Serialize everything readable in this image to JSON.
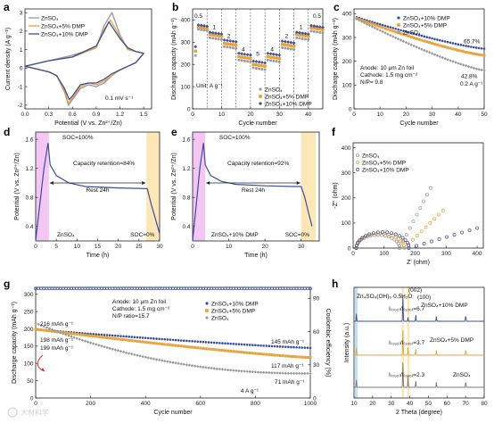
{
  "chart_data": [
    {
      "id": "a",
      "type": "line",
      "xlabel": "Potential (V vs. Zn²⁺/Zn)",
      "ylabel": "Current density (A g⁻¹)",
      "xlim": [
        0,
        1.6
      ],
      "ylim": [
        -2.2,
        3.2
      ],
      "xticks": [
        "0.0",
        "0.3",
        "0.6",
        "0.9",
        "1.2",
        "1.5"
      ],
      "yticks": [
        "-2",
        "-1",
        "0",
        "1",
        "2",
        "3"
      ],
      "annotation": "0.1 mV s⁻¹",
      "series": [
        {
          "name": "ZnSO₄",
          "color": "#9a9a9a",
          "upper": [
            [
              0.0,
              0.1
            ],
            [
              0.3,
              0.4
            ],
            [
              0.6,
              0.7
            ],
            [
              0.9,
              1.1
            ],
            [
              1.0,
              2.3
            ],
            [
              1.1,
              3.0
            ],
            [
              1.2,
              1.8
            ],
            [
              1.3,
              1.0
            ],
            [
              1.4,
              0.9
            ],
            [
              1.5,
              0.8
            ]
          ],
          "lower": [
            [
              1.5,
              0.8
            ],
            [
              1.4,
              0.3
            ],
            [
              1.3,
              0.1
            ],
            [
              1.2,
              -0.1
            ],
            [
              1.1,
              -0.4
            ],
            [
              1.0,
              -0.8
            ],
            [
              0.9,
              -1.0
            ],
            [
              0.8,
              -0.9
            ],
            [
              0.7,
              -1.1
            ],
            [
              0.6,
              -1.7
            ],
            [
              0.55,
              -2.0
            ],
            [
              0.5,
              -1.3
            ],
            [
              0.4,
              -0.4
            ],
            [
              0.3,
              -0.2
            ],
            [
              0.0,
              0.1
            ]
          ]
        },
        {
          "name": "ZnSO₄+5% DMP",
          "color": "#e8a23a",
          "upper": [
            [
              0.0,
              0.1
            ],
            [
              0.3,
              0.4
            ],
            [
              0.6,
              0.6
            ],
            [
              0.9,
              1.1
            ],
            [
              1.0,
              2.1
            ],
            [
              1.08,
              2.6
            ],
            [
              1.2,
              1.7
            ],
            [
              1.3,
              1.0
            ],
            [
              1.4,
              0.9
            ],
            [
              1.5,
              0.8
            ]
          ],
          "lower": [
            [
              1.5,
              0.8
            ],
            [
              1.4,
              0.3
            ],
            [
              1.3,
              0.1
            ],
            [
              1.2,
              -0.1
            ],
            [
              1.1,
              -0.4
            ],
            [
              1.0,
              -0.7
            ],
            [
              0.9,
              -0.9
            ],
            [
              0.8,
              -0.8
            ],
            [
              0.7,
              -1.0
            ],
            [
              0.6,
              -1.6
            ],
            [
              0.55,
              -1.9
            ],
            [
              0.5,
              -1.2
            ],
            [
              0.4,
              -0.4
            ],
            [
              0.3,
              -0.2
            ],
            [
              0.0,
              0.1
            ]
          ]
        },
        {
          "name": "ZnSO₄+10% DMP",
          "color": "#3a4f9c",
          "upper": [
            [
              0.0,
              0.1
            ],
            [
              0.3,
              0.4
            ],
            [
              0.6,
              0.6
            ],
            [
              0.9,
              1.2
            ],
            [
              1.0,
              2.0
            ],
            [
              1.06,
              2.5
            ],
            [
              1.2,
              1.6
            ],
            [
              1.3,
              1.1
            ],
            [
              1.4,
              0.9
            ],
            [
              1.5,
              0.8
            ]
          ],
          "lower": [
            [
              1.5,
              0.8
            ],
            [
              1.4,
              0.3
            ],
            [
              1.3,
              0.1
            ],
            [
              1.2,
              -0.1
            ],
            [
              1.1,
              -0.3
            ],
            [
              1.0,
              -0.6
            ],
            [
              0.9,
              -0.8
            ],
            [
              0.8,
              -0.8
            ],
            [
              0.7,
              -0.9
            ],
            [
              0.6,
              -1.5
            ],
            [
              0.56,
              -1.7
            ],
            [
              0.5,
              -1.1
            ],
            [
              0.4,
              -0.4
            ],
            [
              0.3,
              -0.2
            ],
            [
              0.0,
              0.1
            ]
          ]
        }
      ]
    },
    {
      "id": "b",
      "type": "scatter",
      "xlabel": "Cycle number",
      "ylabel": "Discharge capacity (mAh g⁻¹)",
      "xlim": [
        0,
        45
      ],
      "ylim": [
        0,
        450
      ],
      "xticks": [
        "0",
        "10",
        "20",
        "30",
        "40"
      ],
      "yticks": [
        "0",
        "100",
        "200",
        "300",
        "400"
      ],
      "unit_label": "Unit: A g⁻¹",
      "rate_labels": [
        {
          "cycle": 2,
          "cap": 410,
          "text": "0.5"
        },
        {
          "cycle": 7.5,
          "cap": 360,
          "text": "1"
        },
        {
          "cycle": 12.5,
          "cap": 320,
          "text": "2"
        },
        {
          "cycle": 17.5,
          "cap": 260,
          "text": "4"
        },
        {
          "cycle": 22.5,
          "cap": 240,
          "text": "5"
        },
        {
          "cycle": 27.5,
          "cap": 260,
          "text": "4"
        },
        {
          "cycle": 32.5,
          "cap": 320,
          "text": "2"
        },
        {
          "cycle": 37.5,
          "cap": 360,
          "text": "1"
        },
        {
          "cycle": 43,
          "cap": 410,
          "text": "0.5"
        }
      ],
      "series": [
        {
          "name": "ZnSO₄",
          "color": "#9a9a9a",
          "levels": [
            360,
            320,
            280,
            220,
            185,
            220,
            275,
            320,
            350
          ]
        },
        {
          "name": "ZnSO₄+5% DMP",
          "color": "#e8a23a",
          "levels": [
            370,
            335,
            295,
            235,
            200,
            235,
            290,
            335,
            365
          ]
        },
        {
          "name": "ZnSO₄+10% DMP",
          "color": "#3a4f9c",
          "levels": [
            380,
            345,
            310,
            250,
            215,
            250,
            305,
            345,
            375
          ]
        }
      ]
    },
    {
      "id": "c",
      "type": "scatter",
      "xlabel": "Cycle number",
      "ylabel": "Discharge capacity (mAh g⁻¹)",
      "xlim": [
        0,
        50
      ],
      "ylim": [
        0,
        420
      ],
      "xticks": [
        "0",
        "10",
        "20",
        "30",
        "40",
        "50"
      ],
      "yticks": [
        "0",
        "100",
        "200",
        "300",
        "400"
      ],
      "annotations": [
        "Anode: 10 μm Zn foil",
        "Cathode: 1.5 mg cm⁻²",
        "N/P= 9.8",
        "0.2 A g⁻¹"
      ],
      "series": [
        {
          "name": "ZnSO₄+10% DMP",
          "color": "#3a4f9c",
          "start": 385,
          "end": 253,
          "label": "65.7%"
        },
        {
          "name": "ZnSO₄+5% DMP",
          "color": "#e8a23a",
          "start": 380,
          "end": 225
        },
        {
          "name": "ZnSO₄",
          "color": "#9a9a9a",
          "start": 378,
          "end": 162,
          "label": "42.8%"
        }
      ]
    },
    {
      "id": "d",
      "type": "line",
      "xlabel": "Time (h)",
      "ylabel": "Potential (V vs. Zn²⁺/Zn)",
      "xlim": [
        0,
        30
      ],
      "ylim": [
        0.2,
        1.7
      ],
      "xticks": [
        "0",
        "5",
        "10",
        "15",
        "20",
        "25",
        "30"
      ],
      "yticks": [
        "0.4",
        "0.8",
        "1.2",
        "1.6"
      ],
      "soc_top": "SOC=100%",
      "soc_bottom": "SOC=0%",
      "retention": "Capacity retention=84%",
      "rest": "Rest 24h",
      "electrolyte": "ZnSO₄",
      "curve": [
        [
          0,
          0.2
        ],
        [
          1,
          0.7
        ],
        [
          2,
          1.2
        ],
        [
          3,
          1.55
        ],
        [
          3.5,
          1.25
        ],
        [
          5,
          1.1
        ],
        [
          8,
          1.0
        ],
        [
          12,
          0.95
        ],
        [
          20,
          0.93
        ],
        [
          27,
          0.92
        ],
        [
          28,
          0.7
        ],
        [
          29,
          0.5
        ],
        [
          30,
          0.3
        ]
      ]
    },
    {
      "id": "e",
      "type": "line",
      "xlabel": "Time (h)",
      "ylabel": "Potential (V vs. Zn²⁺/Zn)",
      "xlim": [
        0,
        35
      ],
      "ylim": [
        0.2,
        1.7
      ],
      "xticks": [
        "0",
        "10",
        "20",
        "30"
      ],
      "yticks": [
        "0.4",
        "0.8",
        "1.2",
        "1.6"
      ],
      "soc_top": "SOC=100%",
      "soc_bottom": "SOC=0%",
      "retention": "Capacity retention=92%",
      "rest": "Rest 24h",
      "electrolyte": "ZnSO₄+10% DMP",
      "curve": [
        [
          0,
          0.2
        ],
        [
          1,
          0.7
        ],
        [
          2,
          1.2
        ],
        [
          3,
          1.55
        ],
        [
          3.5,
          1.25
        ],
        [
          5,
          1.1
        ],
        [
          8,
          1.02
        ],
        [
          12,
          0.98
        ],
        [
          20,
          0.96
        ],
        [
          28,
          0.95
        ],
        [
          29,
          0.95
        ],
        [
          30,
          0.95
        ],
        [
          31,
          0.8
        ],
        [
          32,
          0.6
        ],
        [
          33,
          0.4
        ]
      ]
    },
    {
      "id": "f",
      "type": "scatter",
      "xlabel": "Z' (ohm)",
      "ylabel": "-Z'' (ohm)",
      "xlim": [
        0,
        420
      ],
      "ylim": [
        0,
        420
      ],
      "xticks": [
        "0",
        "100",
        "200",
        "300",
        "400"
      ],
      "yticks": [
        "0",
        "100",
        "200",
        "300",
        "400"
      ],
      "series": [
        {
          "name": "ZnSO₄",
          "color": "#9a9a9a",
          "semicircle": [
            10,
            140
          ],
          "tail_end": [
            250,
            240
          ]
        },
        {
          "name": "ZnSO₄+5% DMP",
          "color": "#e8a23a",
          "semicircle": [
            10,
            155
          ],
          "tail_end": [
            290,
            150
          ]
        },
        {
          "name": "ZnSO₄+10% DMP",
          "color": "#3a4f9c",
          "semicircle": [
            10,
            170
          ],
          "tail_end": [
            400,
            80
          ]
        }
      ]
    },
    {
      "id": "g",
      "type": "scatter",
      "xlabel": "Cycle number",
      "ylabel": "Discharge capacity (mAh g⁻¹)",
      "ylabel2": "Coulombic efficiency (%)",
      "xlim": [
        0,
        1000
      ],
      "ylim": [
        0,
        320
      ],
      "ylim2": [
        0,
        100
      ],
      "xticks": [
        "0",
        "200",
        "400",
        "600",
        "800",
        "1000"
      ],
      "yticks": [
        "0",
        "50",
        "100",
        "150",
        "200",
        "250",
        "300"
      ],
      "yticks2": [
        "0",
        "30",
        "60",
        "90"
      ],
      "annotations": [
        "Anode: 10 μm Zn foil",
        "Cathode: 1.5 mg cm⁻²",
        "N/P ratio=15.7",
        "4 A g⁻¹"
      ],
      "value_labels": [
        "216 mAh g⁻¹",
        "198 mAh g⁻¹",
        "199 mAh g⁻¹",
        "145 mAh g⁻¹",
        "117 mAh g⁻¹",
        "71 mAh g⁻¹"
      ],
      "series": [
        {
          "name": "ZnSO₄+10% DMP",
          "color": "#3a4f9c",
          "start": 198,
          "end": 145
        },
        {
          "name": "ZnSO₄+5% DMP",
          "color": "#e8a23a",
          "start": 199,
          "end": 117
        },
        {
          "name": "ZnSO₄",
          "color": "#9a9a9a",
          "start": 216,
          "end": 71
        },
        {
          "name": "Coulombic efficiency",
          "color": "#3a4f9c",
          "ce": 99
        }
      ]
    },
    {
      "id": "h",
      "type": "line",
      "xlabel": "2 Theta (degree)",
      "ylabel": "Intensity (a.u.)",
      "xlim": [
        10,
        80
      ],
      "xticks": [
        "10",
        "20",
        "30",
        "40",
        "50",
        "60",
        "70",
        "80"
      ],
      "phase_label": "Zn₄SO₄(OH)₆·0.5H₂O",
      "peak_labels": [
        "(002)",
        "(100)"
      ],
      "series": [
        {
          "name": "ZnSO₄+10% DMP",
          "color": "#3a4f9c",
          "ratio": "I₍₀₀₂₎/I₍₁₀₀₎=6.7"
        },
        {
          "name": "ZnSO₄+5% DMP",
          "color": "#e8a23a",
          "ratio": "I₍₀₀₂₎/I₍₁₀₀₎=3.7"
        },
        {
          "name": "ZnSO₄",
          "color": "#7a7a7a",
          "ratio": "I₍₀₀₂₎/I₍₁₀₀₎=2.3"
        }
      ]
    }
  ],
  "watermark": "大材料学"
}
